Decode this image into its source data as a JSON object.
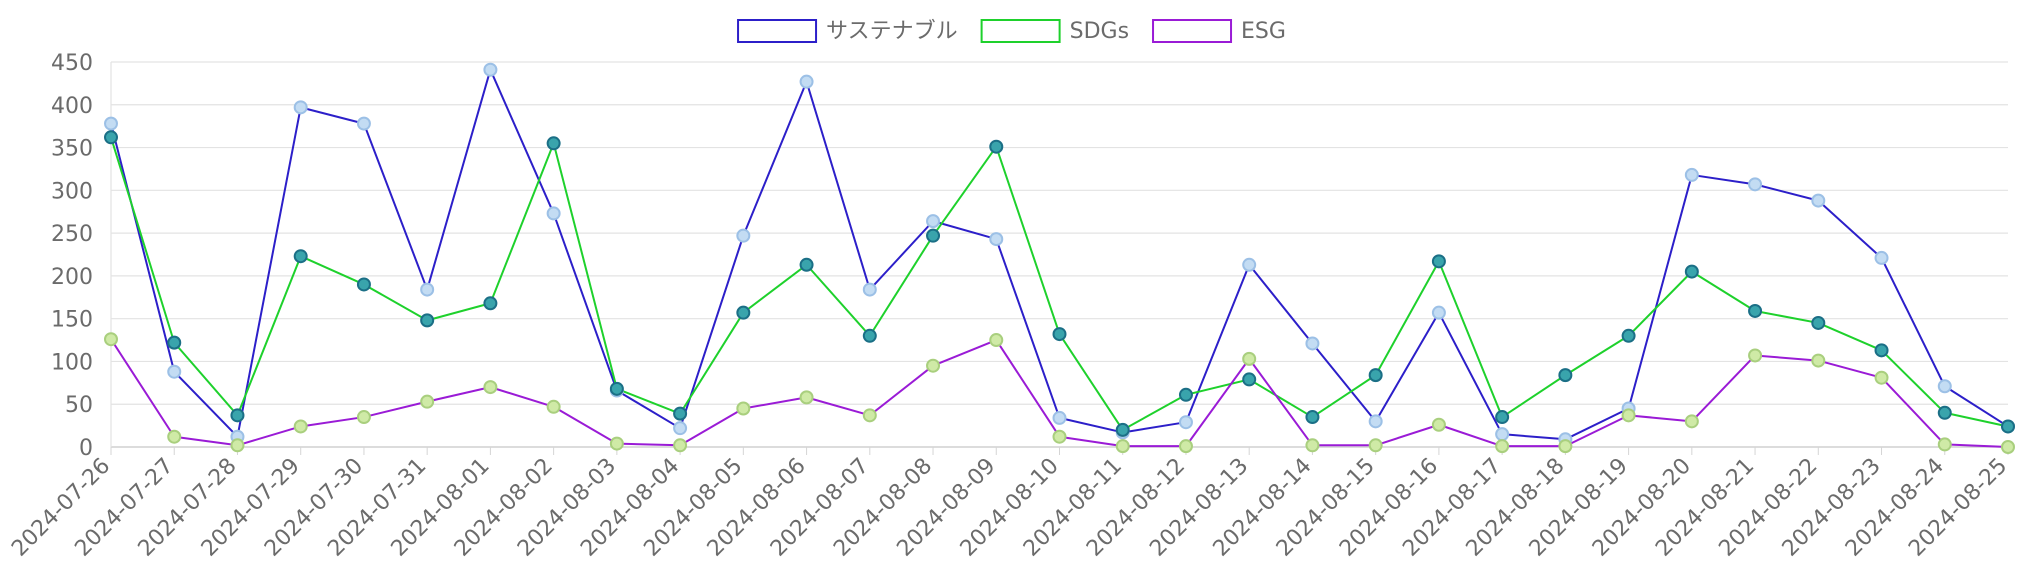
{
  "chart_data": {
    "type": "line",
    "title": "",
    "xlabel": "",
    "ylabel": "",
    "ylim": [
      0,
      450
    ],
    "yticks": [
      0,
      50,
      100,
      150,
      200,
      250,
      300,
      350,
      400,
      450
    ],
    "grid": true,
    "legend_position": "top-center",
    "categories": [
      "2024-07-26",
      "2024-07-27",
      "2024-07-28",
      "2024-07-29",
      "2024-07-30",
      "2024-07-31",
      "2024-08-01",
      "2024-08-02",
      "2024-08-03",
      "2024-08-04",
      "2024-08-05",
      "2024-08-06",
      "2024-08-07",
      "2024-08-08",
      "2024-08-09",
      "2024-08-10",
      "2024-08-11",
      "2024-08-12",
      "2024-08-13",
      "2024-08-14",
      "2024-08-15",
      "2024-08-16",
      "2024-08-17",
      "2024-08-18",
      "2024-08-19",
      "2024-08-20",
      "2024-08-21",
      "2024-08-22",
      "2024-08-23",
      "2024-08-24",
      "2024-08-25"
    ],
    "series": [
      {
        "name": "サステナブル",
        "color": "#2c1fc9",
        "marker_fill": "#c3dcf3",
        "marker_stroke": "#9cc0e6",
        "values": [
          378,
          88,
          12,
          397,
          378,
          184,
          441,
          273,
          66,
          22,
          247,
          427,
          184,
          264,
          243,
          34,
          17,
          29,
          213,
          121,
          30,
          157,
          15,
          9,
          45,
          318,
          307,
          288,
          221,
          71,
          24
        ]
      },
      {
        "name": "SDGs",
        "color": "#1ed12c",
        "marker_fill": "#39a4ac",
        "marker_stroke": "#1b6f86",
        "values": [
          362,
          122,
          37,
          223,
          190,
          148,
          168,
          355,
          68,
          39,
          157,
          213,
          130,
          247,
          351,
          132,
          20,
          61,
          79,
          35,
          84,
          217,
          35,
          84,
          130,
          205,
          159,
          145,
          113,
          40,
          24
        ]
      },
      {
        "name": "ESG",
        "color": "#9a1bd6",
        "marker_fill": "#cfeaa6",
        "marker_stroke": "#a9cf7e",
        "values": [
          126,
          12,
          2,
          24,
          35,
          53,
          70,
          47,
          4,
          2,
          45,
          58,
          37,
          95,
          125,
          12,
          1,
          1,
          103,
          2,
          2,
          26,
          1,
          1,
          37,
          30,
          107,
          101,
          81,
          3,
          0
        ]
      }
    ]
  }
}
